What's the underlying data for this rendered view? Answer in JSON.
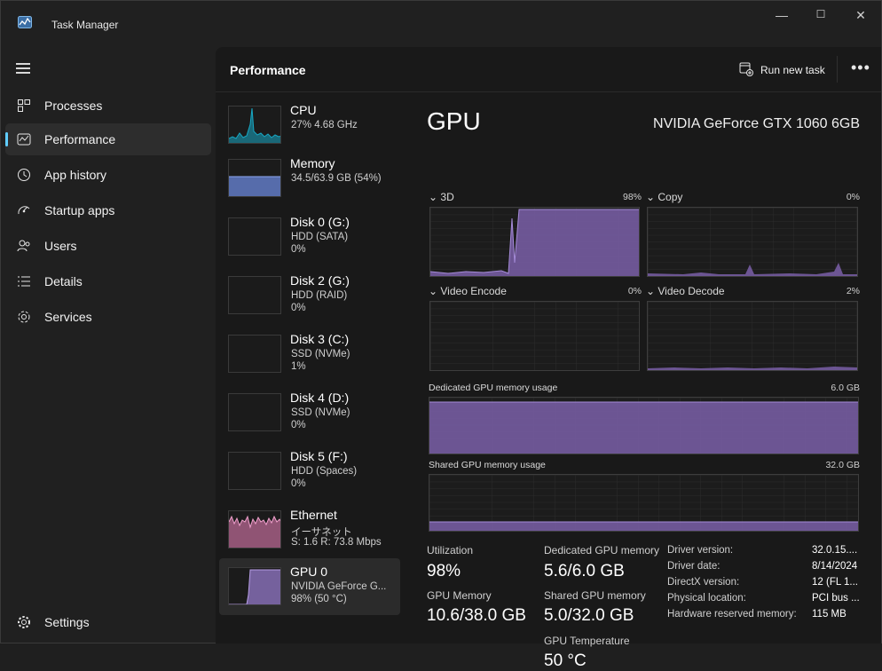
{
  "window": {
    "title": "Task Manager",
    "minimize": "—",
    "maximize": "☐",
    "close": "✕"
  },
  "sidebar": {
    "items": [
      {
        "label": "Processes",
        "icon": "processes-icon"
      },
      {
        "label": "Performance",
        "icon": "performance-icon",
        "active": true
      },
      {
        "label": "App history",
        "icon": "app-history-icon"
      },
      {
        "label": "Startup apps",
        "icon": "startup-apps-icon"
      },
      {
        "label": "Users",
        "icon": "users-icon"
      },
      {
        "label": "Details",
        "icon": "details-icon"
      },
      {
        "label": "Services",
        "icon": "services-icon"
      }
    ],
    "settings_label": "Settings"
  },
  "header": {
    "title": "Performance",
    "run_task_label": "Run new task",
    "more_label": "•••"
  },
  "devices": [
    {
      "name": "CPU",
      "sub1": "27%  4.68 GHz",
      "sub2": "",
      "color": "#17a8c4"
    },
    {
      "name": "Memory",
      "sub1": "34.5/63.9 GB (54%)",
      "sub2": "",
      "color": "#6f8fe8"
    },
    {
      "name": "Disk 0 (G:)",
      "sub1": "HDD (SATA)",
      "sub2": "0%",
      "color": "#5fbf6a"
    },
    {
      "name": "Disk 2 (G:)",
      "sub1": "HDD (RAID)",
      "sub2": "0%",
      "color": "#5fbf6a"
    },
    {
      "name": "Disk 3 (C:)",
      "sub1": "SSD (NVMe)",
      "sub2": "1%",
      "color": "#5fbf6a"
    },
    {
      "name": "Disk 4 (D:)",
      "sub1": "SSD (NVMe)",
      "sub2": "0%",
      "color": "#5fbf6a"
    },
    {
      "name": "Disk 5 (F:)",
      "sub1": "HDD (Spaces)",
      "sub2": "0%",
      "color": "#5fbf6a"
    },
    {
      "name": "Ethernet",
      "sub1": "イーサネット",
      "sub2": "S: 1.6  R: 73.8 Mbps",
      "color": "#e07bb0"
    },
    {
      "name": "GPU 0",
      "sub1": "NVIDIA GeForce G...",
      "sub2": "98%  (50 °C)",
      "color": "#9b7fd4",
      "selected": true
    }
  ],
  "gpu": {
    "title": "GPU",
    "model": "NVIDIA GeForce GTX 1060 6GB",
    "engines": [
      {
        "label": "3D",
        "pct": "98%"
      },
      {
        "label": "Copy",
        "pct": "0%"
      },
      {
        "label": "Video Encode",
        "pct": "0%"
      },
      {
        "label": "Video Decode",
        "pct": "2%"
      }
    ],
    "dedicated_label": "Dedicated GPU memory usage",
    "dedicated_max": "6.0 GB",
    "shared_label": "Shared GPU memory usage",
    "shared_max": "32.0 GB",
    "stats": {
      "utilization_label": "Utilization",
      "utilization": "98%",
      "dedicated_mem_label": "Dedicated GPU memory",
      "dedicated_mem": "5.6/6.0 GB",
      "gpu_mem_label": "GPU Memory",
      "gpu_mem": "10.6/38.0 GB",
      "shared_mem_label": "Shared GPU memory",
      "shared_mem": "5.0/32.0 GB",
      "temp_label": "GPU Temperature",
      "temp": "50 °C"
    },
    "info": [
      {
        "k": "Driver version:",
        "v": "32.0.15...."
      },
      {
        "k": "Driver date:",
        "v": "8/14/2024"
      },
      {
        "k": "DirectX version:",
        "v": "12 (FL 1..."
      },
      {
        "k": "Physical location:",
        "v": "PCI bus ..."
      },
      {
        "k": "Hardware reserved memory:",
        "v": "115 MB"
      }
    ]
  },
  "colors": {
    "gpu_fill": "#7a5fa8",
    "gpu_line": "#a58bd8",
    "accent": "#60cdff"
  }
}
